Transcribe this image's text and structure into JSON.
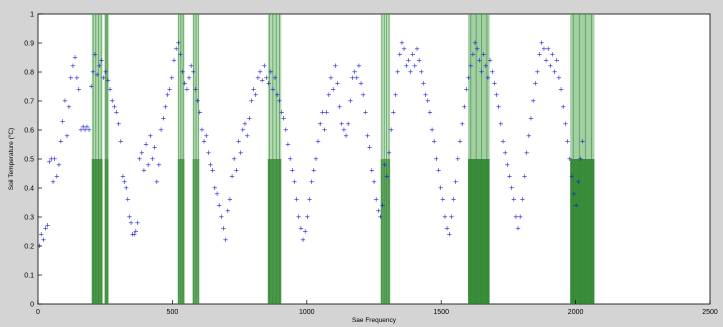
{
  "chart_data": {
    "type": "scatter",
    "xlabel": "Sae Frequency",
    "ylabel": "Soil Temperature (°C)",
    "xlim": [
      0,
      2500
    ],
    "ylim": [
      0,
      1
    ],
    "grid": false,
    "x_ticks": [
      0,
      500,
      1000,
      1500,
      2000,
      2500
    ],
    "x_tick_labels": [
      "0",
      "500",
      "1000",
      "1500",
      "2000",
      "2500"
    ],
    "y_ticks": [
      0,
      0.1,
      0.2,
      0.3,
      0.4,
      0.5,
      0.6,
      0.7,
      0.8,
      0.9,
      1
    ],
    "y_tick_labels": [
      "0",
      "0.1",
      "0.2",
      "0.3",
      "0.4",
      "0.5",
      "0.6",
      "0.7",
      "0.8",
      "0.9",
      "1"
    ],
    "series": [
      {
        "kind": "points",
        "color": "#1f1fd0",
        "points": [
          [
            5,
            0.2
          ],
          [
            12,
            0.24
          ],
          [
            20,
            0.22
          ],
          [
            28,
            0.26
          ],
          [
            36,
            0.27
          ],
          [
            42,
            0.49
          ],
          [
            50,
            0.5
          ],
          [
            56,
            0.42
          ],
          [
            62,
            0.5
          ],
          [
            70,
            0.44
          ],
          [
            78,
            0.48
          ],
          [
            85,
            0.56
          ],
          [
            92,
            0.63
          ],
          [
            100,
            0.7
          ],
          [
            108,
            0.58
          ],
          [
            115,
            0.68
          ],
          [
            122,
            0.78
          ],
          [
            130,
            0.82
          ],
          [
            138,
            0.85
          ],
          [
            145,
            0.78
          ],
          [
            152,
            0.74
          ],
          [
            160,
            0.6
          ],
          [
            168,
            0.61
          ],
          [
            175,
            0.6
          ],
          [
            182,
            0.61
          ],
          [
            190,
            0.6
          ],
          [
            198,
            0.75
          ],
          [
            205,
            0.8
          ],
          [
            212,
            0.86
          ],
          [
            220,
            0.79
          ],
          [
            228,
            0.82
          ],
          [
            236,
            0.84
          ],
          [
            244,
            0.78
          ],
          [
            252,
            0.8
          ],
          [
            260,
            0.77
          ],
          [
            268,
            0.74
          ],
          [
            276,
            0.7
          ],
          [
            284,
            0.68
          ],
          [
            292,
            0.66
          ],
          [
            300,
            0.62
          ],
          [
            308,
            0.56
          ],
          [
            316,
            0.44
          ],
          [
            322,
            0.42
          ],
          [
            328,
            0.4
          ],
          [
            334,
            0.36
          ],
          [
            340,
            0.3
          ],
          [
            346,
            0.28
          ],
          [
            352,
            0.24
          ],
          [
            358,
            0.24
          ],
          [
            364,
            0.25
          ],
          [
            370,
            0.28
          ],
          [
            378,
            0.5
          ],
          [
            386,
            0.52
          ],
          [
            394,
            0.46
          ],
          [
            402,
            0.55
          ],
          [
            410,
            0.48
          ],
          [
            418,
            0.58
          ],
          [
            426,
            0.5
          ],
          [
            434,
            0.54
          ],
          [
            442,
            0.42
          ],
          [
            450,
            0.48
          ],
          [
            458,
            0.6
          ],
          [
            466,
            0.64
          ],
          [
            474,
            0.68
          ],
          [
            482,
            0.72
          ],
          [
            490,
            0.74
          ],
          [
            498,
            0.78
          ],
          [
            506,
            0.84
          ],
          [
            514,
            0.88
          ],
          [
            522,
            0.9
          ],
          [
            530,
            0.86
          ],
          [
            538,
            0.8
          ],
          [
            546,
            0.76
          ],
          [
            554,
            0.74
          ],
          [
            562,
            0.78
          ],
          [
            570,
            0.82
          ],
          [
            578,
            0.8
          ],
          [
            586,
            0.74
          ],
          [
            594,
            0.7
          ],
          [
            602,
            0.66
          ],
          [
            610,
            0.6
          ],
          [
            618,
            0.56
          ],
          [
            626,
            0.58
          ],
          [
            634,
            0.52
          ],
          [
            642,
            0.48
          ],
          [
            650,
            0.46
          ],
          [
            658,
            0.4
          ],
          [
            666,
            0.38
          ],
          [
            674,
            0.34
          ],
          [
            682,
            0.3
          ],
          [
            690,
            0.26
          ],
          [
            698,
            0.22
          ],
          [
            706,
            0.32
          ],
          [
            714,
            0.36
          ],
          [
            722,
            0.44
          ],
          [
            730,
            0.5
          ],
          [
            738,
            0.46
          ],
          [
            746,
            0.56
          ],
          [
            754,
            0.52
          ],
          [
            762,
            0.6
          ],
          [
            770,
            0.62
          ],
          [
            778,
            0.58
          ],
          [
            786,
            0.64
          ],
          [
            794,
            0.7
          ],
          [
            802,
            0.74
          ],
          [
            810,
            0.72
          ],
          [
            818,
            0.78
          ],
          [
            826,
            0.8
          ],
          [
            834,
            0.77
          ],
          [
            842,
            0.82
          ],
          [
            850,
            0.78
          ],
          [
            858,
            0.76
          ],
          [
            866,
            0.8
          ],
          [
            874,
            0.74
          ],
          [
            882,
            0.78
          ],
          [
            890,
            0.72
          ],
          [
            898,
            0.7
          ],
          [
            906,
            0.66
          ],
          [
            914,
            0.64
          ],
          [
            922,
            0.6
          ],
          [
            930,
            0.55
          ],
          [
            938,
            0.5
          ],
          [
            946,
            0.46
          ],
          [
            954,
            0.42
          ],
          [
            962,
            0.36
          ],
          [
            970,
            0.3
          ],
          [
            978,
            0.26
          ],
          [
            986,
            0.22
          ],
          [
            994,
            0.25
          ],
          [
            1002,
            0.3
          ],
          [
            1010,
            0.36
          ],
          [
            1018,
            0.42
          ],
          [
            1026,
            0.46
          ],
          [
            1034,
            0.5
          ],
          [
            1042,
            0.56
          ],
          [
            1050,
            0.62
          ],
          [
            1058,
            0.66
          ],
          [
            1066,
            0.6
          ],
          [
            1074,
            0.66
          ],
          [
            1082,
            0.72
          ],
          [
            1090,
            0.78
          ],
          [
            1098,
            0.74
          ],
          [
            1106,
            0.82
          ],
          [
            1114,
            0.76
          ],
          [
            1122,
            0.68
          ],
          [
            1130,
            0.62
          ],
          [
            1138,
            0.6
          ],
          [
            1146,
            0.58
          ],
          [
            1154,
            0.62
          ],
          [
            1162,
            0.7
          ],
          [
            1170,
            0.78
          ],
          [
            1178,
            0.8
          ],
          [
            1186,
            0.78
          ],
          [
            1194,
            0.82
          ],
          [
            1202,
            0.76
          ],
          [
            1210,
            0.72
          ],
          [
            1218,
            0.66
          ],
          [
            1226,
            0.58
          ],
          [
            1234,
            0.54
          ],
          [
            1242,
            0.46
          ],
          [
            1250,
            0.42
          ],
          [
            1258,
            0.36
          ],
          [
            1266,
            0.32
          ],
          [
            1274,
            0.3
          ],
          [
            1282,
            0.34
          ],
          [
            1290,
            0.48
          ],
          [
            1298,
            0.44
          ],
          [
            1306,
            0.52
          ],
          [
            1314,
            0.6
          ],
          [
            1322,
            0.66
          ],
          [
            1330,
            0.72
          ],
          [
            1338,
            0.8
          ],
          [
            1346,
            0.86
          ],
          [
            1354,
            0.9
          ],
          [
            1362,
            0.88
          ],
          [
            1370,
            0.82
          ],
          [
            1378,
            0.84
          ],
          [
            1386,
            0.8
          ],
          [
            1394,
            0.86
          ],
          [
            1402,
            0.82
          ],
          [
            1410,
            0.88
          ],
          [
            1418,
            0.84
          ],
          [
            1426,
            0.8
          ],
          [
            1434,
            0.76
          ],
          [
            1442,
            0.72
          ],
          [
            1450,
            0.7
          ],
          [
            1458,
            0.66
          ],
          [
            1466,
            0.6
          ],
          [
            1474,
            0.56
          ],
          [
            1482,
            0.5
          ],
          [
            1490,
            0.46
          ],
          [
            1498,
            0.4
          ],
          [
            1506,
            0.36
          ],
          [
            1514,
            0.3
          ],
          [
            1522,
            0.26
          ],
          [
            1530,
            0.24
          ],
          [
            1538,
            0.3
          ],
          [
            1546,
            0.36
          ],
          [
            1554,
            0.42
          ],
          [
            1562,
            0.5
          ],
          [
            1570,
            0.56
          ],
          [
            1578,
            0.62
          ],
          [
            1586,
            0.68
          ],
          [
            1594,
            0.74
          ],
          [
            1602,
            0.78
          ],
          [
            1610,
            0.82
          ],
          [
            1618,
            0.86
          ],
          [
            1626,
            0.9
          ],
          [
            1634,
            0.88
          ],
          [
            1642,
            0.84
          ],
          [
            1650,
            0.8
          ],
          [
            1658,
            0.86
          ],
          [
            1666,
            0.82
          ],
          [
            1674,
            0.78
          ],
          [
            1682,
            0.84
          ],
          [
            1690,
            0.8
          ],
          [
            1698,
            0.76
          ],
          [
            1706,
            0.72
          ],
          [
            1714,
            0.68
          ],
          [
            1722,
            0.62
          ],
          [
            1730,
            0.56
          ],
          [
            1738,
            0.52
          ],
          [
            1746,
            0.48
          ],
          [
            1754,
            0.44
          ],
          [
            1762,
            0.4
          ],
          [
            1770,
            0.36
          ],
          [
            1778,
            0.3
          ],
          [
            1786,
            0.26
          ],
          [
            1794,
            0.3
          ],
          [
            1802,
            0.36
          ],
          [
            1810,
            0.44
          ],
          [
            1818,
            0.52
          ],
          [
            1826,
            0.58
          ],
          [
            1834,
            0.64
          ],
          [
            1842,
            0.7
          ],
          [
            1850,
            0.76
          ],
          [
            1858,
            0.8
          ],
          [
            1866,
            0.86
          ],
          [
            1874,
            0.9
          ],
          [
            1882,
            0.88
          ],
          [
            1890,
            0.84
          ],
          [
            1898,
            0.88
          ],
          [
            1906,
            0.82
          ],
          [
            1914,
            0.86
          ],
          [
            1922,
            0.8
          ],
          [
            1930,
            0.84
          ],
          [
            1938,
            0.78
          ],
          [
            1946,
            0.74
          ],
          [
            1954,
            0.68
          ],
          [
            1962,
            0.62
          ],
          [
            1970,
            0.56
          ],
          [
            1978,
            0.5
          ],
          [
            1986,
            0.44
          ],
          [
            1994,
            0.38
          ],
          [
            2002,
            0.34
          ],
          [
            2010,
            0.42
          ],
          [
            2018,
            0.5
          ],
          [
            2026,
            0.56
          ]
        ]
      }
    ],
    "highlight_bands": [
      {
        "x0": 200,
        "x1": 240,
        "opacity": 0.45
      },
      {
        "x0": 248,
        "x1": 262,
        "opacity": 0.35
      },
      {
        "x0": 520,
        "x1": 545,
        "opacity": 0.35
      },
      {
        "x0": 575,
        "x1": 600,
        "opacity": 0.3
      },
      {
        "x0": 855,
        "x1": 905,
        "opacity": 0.45
      },
      {
        "x0": 1275,
        "x1": 1310,
        "opacity": 0.35
      },
      {
        "x0": 1600,
        "x1": 1680,
        "opacity": 0.55
      },
      {
        "x0": 1980,
        "x1": 2070,
        "opacity": 0.55
      }
    ],
    "dark_band_top": 0.5
  }
}
